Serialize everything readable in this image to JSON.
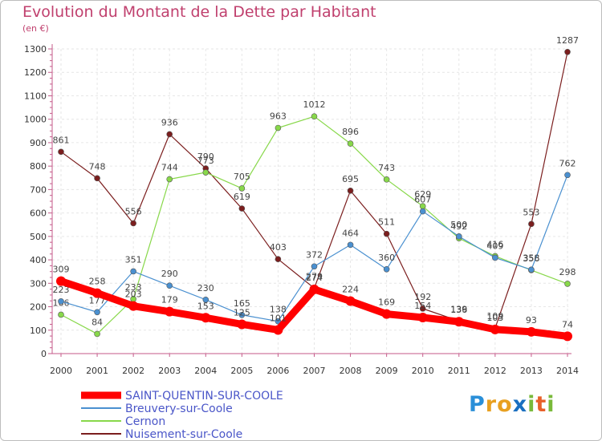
{
  "chart_data": {
    "type": "line",
    "title": "Evolution du Montant de la Dette par Habitant",
    "subtitle": "(en €)",
    "x": [
      "2000",
      "2001",
      "2002",
      "2003",
      "2004",
      "2005",
      "2006",
      "2007",
      "2008",
      "2009",
      "2010",
      "2011",
      "2012",
      "2013",
      "2014"
    ],
    "ylim": [
      0,
      1300
    ],
    "yticks": [
      0,
      100,
      200,
      300,
      400,
      500,
      600,
      700,
      800,
      900,
      1000,
      1100,
      1200,
      1300
    ],
    "grid": true,
    "legend_position": "bottom-left",
    "series": [
      {
        "name": "Nuisement-sur-Coole",
        "color": "#7b1e1e",
        "values": [
          861,
          748,
          556,
          936,
          790,
          619,
          403,
          279,
          695,
          511,
          192,
          139,
          109,
          553,
          1287
        ]
      },
      {
        "name": "Cernon",
        "color": "#88d84a",
        "values": [
          166,
          84,
          233,
          744,
          773,
          705,
          963,
          1012,
          896,
          743,
          629,
          492,
          416,
          356,
          298
        ]
      },
      {
        "name": "Breuvery-sur-Coole",
        "color": "#4a90d0",
        "values": [
          223,
          177,
          351,
          290,
          230,
          165,
          138,
          372,
          464,
          360,
          607,
          500,
          409,
          358,
          762
        ]
      },
      {
        "name": "SAINT-QUENTIN-SUR-COOLE",
        "color": "#ff0000",
        "values": [
          309,
          258,
          203,
          179,
          153,
          125,
          101,
          274,
          224,
          169,
          154,
          136,
          103,
          93,
          74
        ]
      }
    ]
  },
  "legend": {
    "items": [
      {
        "name": "SAINT-QUENTIN-SUR-COOLE",
        "color": "#ff0000"
      },
      {
        "name": "Breuvery-sur-Coole",
        "color": "#4a90d0"
      },
      {
        "name": "Cernon",
        "color": "#88d84a"
      },
      {
        "name": "Nuisement-sur-Coole",
        "color": "#7b1e1e"
      }
    ]
  },
  "logo": {
    "letters": [
      {
        "char": "P",
        "color": "#2a8fd8"
      },
      {
        "char": "r",
        "color": "#e8a020"
      },
      {
        "char": "o",
        "color": "#e8a020"
      },
      {
        "char": "x",
        "color": "#1a6fc0"
      },
      {
        "char": "i",
        "color": "#79b93a"
      },
      {
        "char": "t",
        "color": "#e8602a"
      },
      {
        "char": "i",
        "color": "#79b93a"
      }
    ]
  }
}
